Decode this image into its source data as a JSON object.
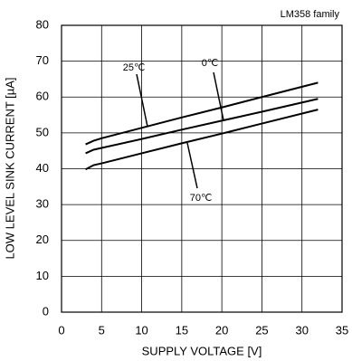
{
  "chart_data": {
    "type": "line",
    "note_label": "LM358 family",
    "x_label": "SUPPLY VOLTAGE [V]",
    "y_label": "LOW LEVEL SINK CURRENT [µA]",
    "x": [
      3,
      4,
      5,
      10,
      15,
      20,
      25,
      32
    ],
    "series": [
      {
        "name": "25℃",
        "color": "#000000",
        "values": [
          46.8,
          47.8,
          48.5,
          51.4,
          54.3,
          57.1,
          60,
          64
        ]
      },
      {
        "name": "0℃",
        "color": "#000000",
        "values": [
          44.3,
          45.3,
          45.8,
          48.3,
          50.9,
          53.4,
          55.9,
          59.5
        ]
      },
      {
        "name": "70℃",
        "color": "#000000",
        "values": [
          39.8,
          41,
          41.5,
          44.3,
          47.1,
          49.8,
          52.6,
          56.5
        ]
      }
    ],
    "xlim": [
      0,
      35
    ],
    "xticks": [
      0,
      5,
      10,
      15,
      20,
      25,
      30,
      35
    ],
    "ylim": [
      0,
      80
    ],
    "yticks": [
      0,
      10,
      20,
      30,
      40,
      50,
      60,
      70,
      80
    ],
    "grid": true
  }
}
